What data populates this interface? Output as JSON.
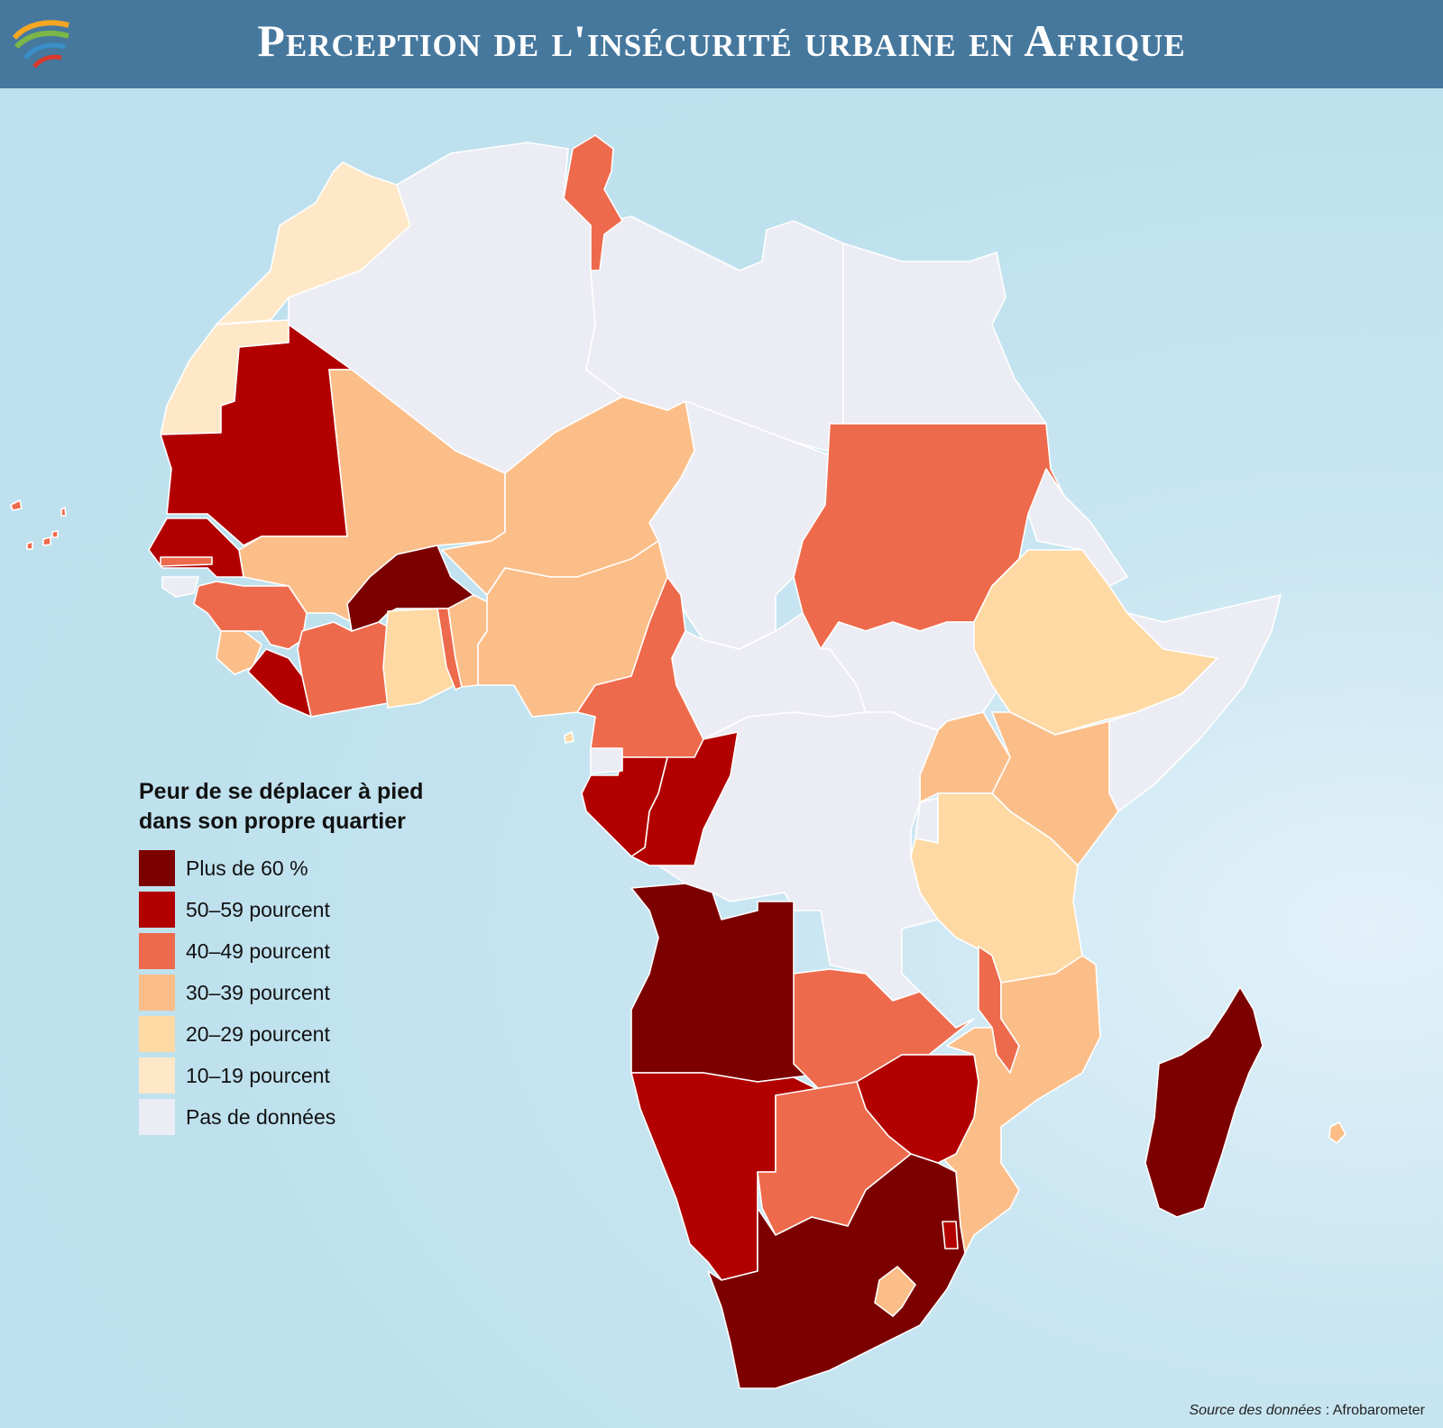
{
  "title": "Perception de l'insécurité urbaine en Afrique",
  "legend": {
    "title": "Peur de se déplacer à pied dans son propre quartier",
    "items": [
      {
        "label": "Plus de 60 %",
        "color": "#7c0000"
      },
      {
        "label": "50–59 pourcent",
        "color": "#b20000"
      },
      {
        "label": "40–49 pourcent",
        "color": "#ee6a4c"
      },
      {
        "label": "30–39 pourcent",
        "color": "#fbbe89"
      },
      {
        "label": "20–29 pourcent",
        "color": "#fed9a3"
      },
      {
        "label": "10–19 pourcent",
        "color": "#ffe8c8"
      },
      {
        "label": "Pas de données",
        "color": "#ececf4"
      }
    ]
  },
  "source": {
    "prefix": "Source des données",
    "separator": " : ",
    "value": "Afrobarometer"
  },
  "colors": {
    "header": "#46789e",
    "ocean": "#bde0ee",
    "border": "#ffffff"
  }
}
